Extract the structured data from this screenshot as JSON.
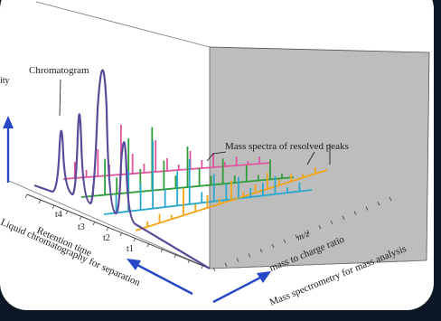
{
  "labels": {
    "intensity_partial": "ity",
    "chromatogram": "Chromatogram",
    "mass_spectra": "Mass spectra of resolved peaks",
    "t4": "t4",
    "t3": "t3",
    "t2": "t2",
    "t1": "t1",
    "retention_time": "Retention time",
    "lc_separation": "Liquid chromatography for separation",
    "mz": "m/z",
    "mass_to_charge": "mass to charge ratio",
    "ms_analysis": "Mass spectrometry for mass analysis"
  },
  "colors": {
    "background": "#0c1726",
    "panel": "#ffffff",
    "back_wall": "#b9b9b9",
    "arrow": "#2547c8",
    "chromatogram": "#5b4a9a",
    "spectrum_t4": "#e0559f",
    "spectrum_t3": "#2f9e3a",
    "spectrum_t2": "#2aa7cc",
    "spectrum_t1": "#f2a516"
  }
}
